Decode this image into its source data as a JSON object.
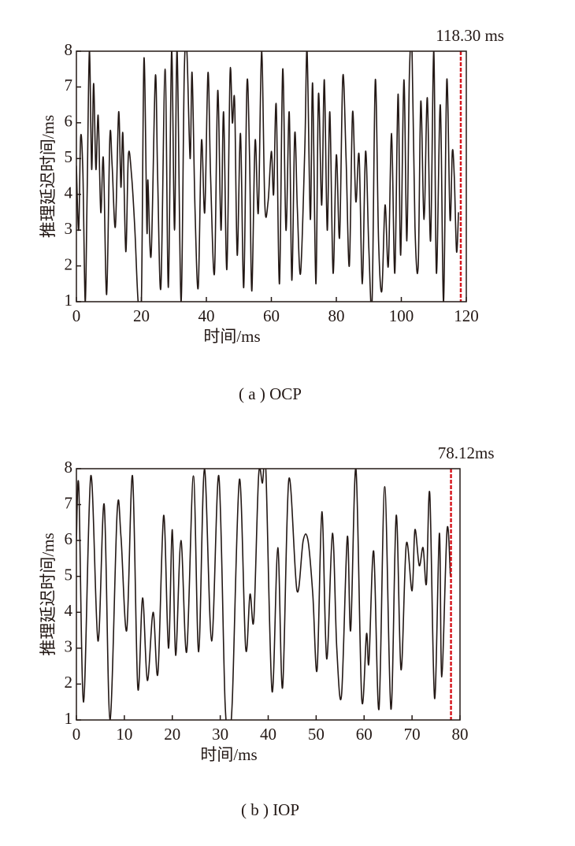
{
  "chart_data": [
    {
      "type": "line",
      "xlabel": "时间/ms",
      "ylabel": "推理延迟时间/ms",
      "caption": "( a ) OCP",
      "x": [
        0,
        0.7,
        1.3,
        2,
        2.7,
        3.3,
        4,
        4.7,
        5.3,
        6,
        6.7,
        7.5,
        8.3,
        9.3,
        10.3,
        11,
        12,
        13,
        13.7,
        14.3,
        15.2,
        16,
        17,
        18,
        19,
        20,
        20.8,
        21.7,
        22,
        23,
        24.3,
        25,
        26,
        27.3,
        28.3,
        29.3,
        30.2,
        31,
        32.2,
        33.2,
        34,
        35,
        35.6,
        36.5,
        37.5,
        38.5,
        39.5,
        40.5,
        41.3,
        42.5,
        43.5,
        44.5,
        45.3,
        46.3,
        47.3,
        48,
        48.7,
        49.5,
        50.5,
        51.5,
        52.5,
        53.3,
        54,
        55,
        56,
        57,
        58,
        59,
        60,
        60.7,
        61.5,
        62.5,
        63.5,
        64.5,
        65.5,
        66.3,
        67.2,
        68,
        69,
        70.3,
        71,
        72,
        72.7,
        73.7,
        74.5,
        75.5,
        76.3,
        77.2,
        78,
        79,
        80,
        81,
        82,
        83,
        84,
        85,
        86,
        87,
        88,
        89,
        90,
        91,
        92,
        93,
        94,
        95,
        96,
        97,
        98,
        99,
        99.8,
        100.8,
        101.7,
        102.5,
        103.3,
        104.2,
        105.2,
        106,
        107,
        108,
        109,
        110,
        110.8,
        112,
        113,
        114,
        115,
        115.7,
        116.3,
        117,
        117.6
      ],
      "series": [
        {
          "color": "#231815",
          "values": [
            4.8,
            3,
            5.6,
            4.6,
            1,
            4,
            8,
            4.7,
            7.1,
            4.7,
            6.2,
            3.5,
            5,
            1.2,
            5.6,
            4.8,
            3.1,
            6.3,
            4.2,
            5.7,
            2.4,
            5.1,
            4.5,
            3,
            1,
            1,
            7.8,
            3,
            4.4,
            2.3,
            7.3,
            4.5,
            1.4,
            7.5,
            1.4,
            8,
            3,
            8,
            1,
            7.4,
            8,
            5,
            7.4,
            3.6,
            1.4,
            5.5,
            3.5,
            7.4,
            4.5,
            1.8,
            6.9,
            3,
            6.3,
            1.9,
            7.4,
            6,
            6.6,
            2.3,
            5.7,
            1.4,
            7.1,
            5,
            1.3,
            5.5,
            3.5,
            8,
            3.7,
            3.8,
            5.2,
            4,
            6.5,
            1.5,
            7.5,
            3,
            6.3,
            1.6,
            5.7,
            3.6,
            1.8,
            5.3,
            8,
            3.3,
            7.1,
            1.5,
            6.8,
            3.7,
            7.2,
            3,
            6.3,
            1.8,
            5.1,
            2.8,
            7.3,
            5,
            2,
            6.3,
            3.8,
            5.1,
            1.5,
            5.2,
            2.5,
            1,
            7.2,
            2.7,
            1.3,
            3.7,
            2,
            5.7,
            1.8,
            6.8,
            2.3,
            7.2,
            2.7,
            7.4,
            8,
            3.1,
            2,
            6.6,
            3.3,
            6.7,
            2.7,
            8,
            1.8,
            6.5,
            1,
            7.2,
            3.3,
            5.2,
            4.5,
            2.4,
            3.5
          ]
        }
      ],
      "xlim": [
        0,
        120
      ],
      "ylim": [
        1,
        8
      ],
      "xticks": [
        0,
        20,
        40,
        60,
        80,
        100,
        120
      ],
      "yticks": [
        1,
        2,
        3,
        4,
        5,
        6,
        7,
        8
      ],
      "marker": {
        "value": 118.3,
        "label": "118.30 ms",
        "color": "#d7181f"
      }
    },
    {
      "type": "line",
      "xlabel": "时间/ms",
      "ylabel": "推理延迟时间/ms",
      "caption": "( b ) IOP",
      "x": [
        0,
        0.5,
        1.5,
        3,
        4.5,
        5.8,
        7,
        8.5,
        9.3,
        10.5,
        11.7,
        12.8,
        13.8,
        14.8,
        16,
        17,
        18.2,
        19.2,
        20,
        20.7,
        21.8,
        23,
        24.4,
        25.5,
        26.7,
        28.2,
        29.7,
        31,
        31.8,
        32.5,
        34,
        35.3,
        36.2,
        37,
        38,
        38.8,
        39.5,
        40.8,
        42,
        43,
        44.3,
        46,
        47.3,
        48.3,
        49.3,
        50.2,
        51.2,
        52.2,
        53.4,
        54.3,
        55.3,
        56.5,
        57.2,
        58.3,
        59.5,
        60.5,
        61,
        62,
        63.1,
        64.3,
        65.6,
        66.7,
        67.7,
        68.8,
        70,
        70.6,
        71.5,
        72.3,
        73,
        73.7,
        74.7,
        75.7,
        76.2,
        77.3,
        78
      ],
      "series": [
        {
          "color": "#231815",
          "values": [
            6,
            7.5,
            1.5,
            7.8,
            3.2,
            7,
            1,
            6.8,
            6.1,
            3.5,
            7.8,
            1.9,
            4.4,
            2.1,
            4,
            2.3,
            6.7,
            3,
            6.3,
            2.8,
            6,
            2.9,
            7.8,
            2.9,
            8,
            3.2,
            7.8,
            1.5,
            1,
            1.5,
            7.7,
            3,
            4.5,
            3.8,
            7.8,
            7.6,
            8,
            1.8,
            5.8,
            1.9,
            7.7,
            4.6,
            6,
            6,
            4.5,
            2.4,
            6.8,
            2.7,
            6.2,
            3,
            1.7,
            6.1,
            3.5,
            8,
            1.6,
            3.4,
            2.6,
            5.7,
            1.3,
            7.5,
            1.3,
            6.7,
            2.4,
            5.9,
            4.6,
            6.3,
            5.3,
            5.8,
            4.8,
            7.3,
            1.6,
            6.2,
            2.2,
            6.3,
            5
          ]
        }
      ],
      "xlim": [
        0,
        80
      ],
      "ylim": [
        1,
        8
      ],
      "xticks": [
        0,
        10,
        20,
        30,
        40,
        50,
        60,
        70,
        80
      ],
      "yticks": [
        1,
        2,
        3,
        4,
        5,
        6,
        7,
        8
      ],
      "marker": {
        "value": 78.12,
        "label": "78.12ms",
        "color": "#d7181f"
      }
    }
  ]
}
